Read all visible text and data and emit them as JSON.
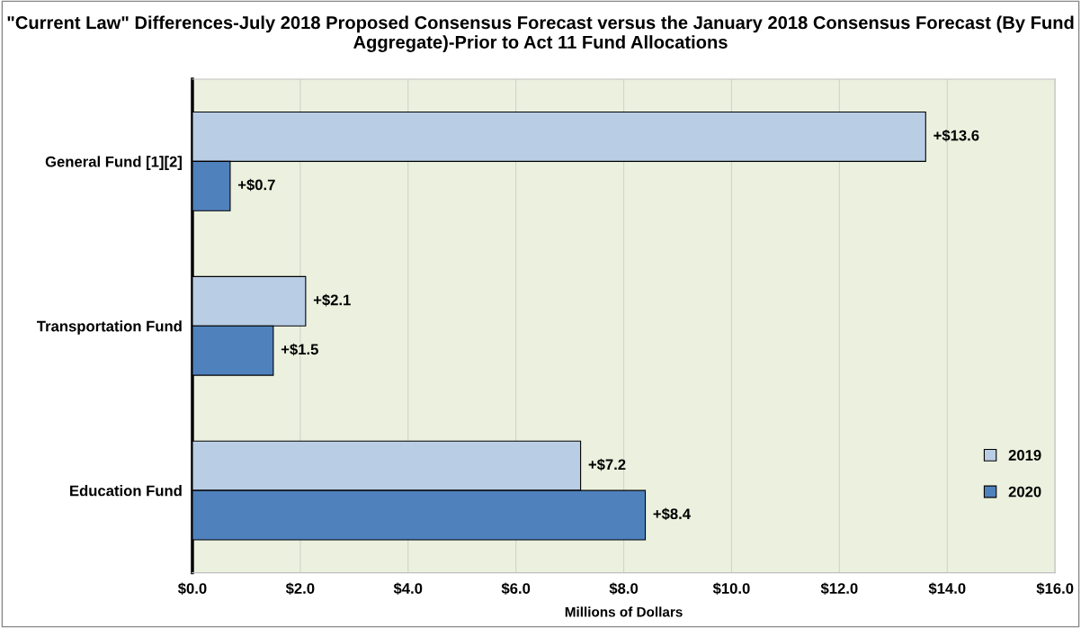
{
  "chart_data": {
    "type": "bar",
    "orientation": "horizontal",
    "title": "\"Current Law\" Differences-July 2018 Proposed Consensus Forecast versus the January 2018 Consensus Forecast (By Fund Aggregate)-Prior to Act 11 Fund Allocations",
    "xlabel": "Millions of Dollars",
    "categories": [
      "General Fund [1][2]",
      "Transportation Fund",
      "Education Fund"
    ],
    "series": [
      {
        "name": "2019",
        "color": "#b9cde5",
        "values": [
          13.6,
          2.1,
          7.2
        ],
        "value_labels": [
          "+$13.6",
          "+$2.1",
          "+$7.2"
        ]
      },
      {
        "name": "2020",
        "color": "#4f81bd",
        "values": [
          0.7,
          1.5,
          8.4
        ],
        "value_labels": [
          "+$0.7",
          "+$1.5",
          "+$8.4"
        ]
      }
    ],
    "xlim": [
      0,
      16
    ],
    "xticks": [
      {
        "value": 0,
        "label": "$0.0"
      },
      {
        "value": 2,
        "label": "$2.0"
      },
      {
        "value": 4,
        "label": "$4.0"
      },
      {
        "value": 6,
        "label": "$6.0"
      },
      {
        "value": 8,
        "label": "$8.0"
      },
      {
        "value": 10,
        "label": "$10.0"
      },
      {
        "value": 12,
        "label": "$12.0"
      },
      {
        "value": 14,
        "label": "$14.0"
      },
      {
        "value": 16,
        "label": "$16.0"
      }
    ],
    "grid": "x",
    "legend": "bottom right"
  }
}
